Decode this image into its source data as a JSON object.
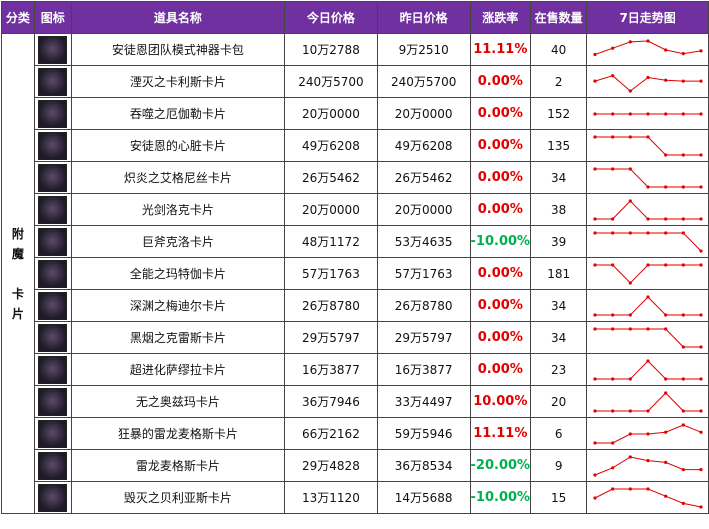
{
  "headers": [
    "分类",
    "图标",
    "道具名称",
    "今日价格",
    "昨日价格",
    "涨跌率",
    "在售数量",
    "7日走势图"
  ],
  "category": [
    "附",
    "魔",
    "",
    "卡",
    "片"
  ],
  "colors": {
    "header_bg": "#7030a0",
    "up": "#e00000",
    "down": "#00b050",
    "trend": "#e00000"
  },
  "rows": [
    {
      "icon": "item-card-icon",
      "name": "安徒恩团队模式神器卡包",
      "today": "10万2788",
      "yesterday": "9万2510",
      "rate": "11.11%",
      "dir": "up",
      "qty": "40",
      "trend": [
        0.25,
        0.6,
        0.95,
        1.0,
        0.5,
        0.3,
        0.45
      ]
    },
    {
      "icon": "item-card-icon",
      "name": "湮灭之卡利斯卡片",
      "today": "240万5700",
      "yesterday": "240万5700",
      "rate": "0.00%",
      "dir": "up",
      "qty": "2",
      "trend": [
        0.55,
        0.85,
        0.0,
        0.75,
        0.6,
        0.55,
        0.55
      ]
    },
    {
      "icon": "item-card-icon",
      "name": "吞噬之厄伽勒卡片",
      "today": "20万0000",
      "yesterday": "20万0000",
      "rate": "0.00%",
      "dir": "up",
      "qty": "152",
      "trend": [
        0.5,
        0.5,
        0.5,
        0.5,
        0.5,
        0.5,
        0.5
      ]
    },
    {
      "icon": "item-card-icon",
      "name": "安徒恩的心脏卡片",
      "today": "49万6208",
      "yesterday": "49万6208",
      "rate": "0.00%",
      "dir": "up",
      "qty": "135",
      "trend": [
        1.0,
        1.0,
        1.0,
        1.0,
        0.0,
        0.0,
        0.0
      ]
    },
    {
      "icon": "item-card-icon",
      "name": "炽炎之艾格尼丝卡片",
      "today": "26万5462",
      "yesterday": "26万5462",
      "rate": "0.00%",
      "dir": "up",
      "qty": "34",
      "trend": [
        1.0,
        1.0,
        1.0,
        0.0,
        0.0,
        0.0,
        0.0
      ]
    },
    {
      "icon": "item-card-icon",
      "name": "光剑洛克卡片",
      "today": "20万0000",
      "yesterday": "20万0000",
      "rate": "0.00%",
      "dir": "up",
      "qty": "38",
      "trend": [
        0.0,
        0.0,
        1.0,
        0.0,
        0.0,
        0.0,
        0.0
      ]
    },
    {
      "icon": "item-card-icon",
      "name": "巨斧克洛卡片",
      "today": "48万1172",
      "yesterday": "53万4635",
      "rate": "-10.00%",
      "dir": "down",
      "qty": "39",
      "trend": [
        1.0,
        1.0,
        1.0,
        1.0,
        1.0,
        1.0,
        0.0
      ]
    },
    {
      "icon": "item-card-icon",
      "name": "全能之玛特伽卡片",
      "today": "57万1763",
      "yesterday": "57万1763",
      "rate": "0.00%",
      "dir": "up",
      "qty": "181",
      "trend": [
        1.0,
        1.0,
        0.0,
        1.0,
        1.0,
        1.0,
        1.0
      ]
    },
    {
      "icon": "item-card-icon",
      "name": "深渊之梅迪尔卡片",
      "today": "26万8780",
      "yesterday": "26万8780",
      "rate": "0.00%",
      "dir": "up",
      "qty": "34",
      "trend": [
        0.0,
        0.0,
        0.0,
        1.0,
        0.0,
        0.0,
        0.0
      ]
    },
    {
      "icon": "item-card-icon",
      "name": "黑烟之克雷斯卡片",
      "today": "29万5797",
      "yesterday": "29万5797",
      "rate": "0.00%",
      "dir": "up",
      "qty": "34",
      "trend": [
        1.0,
        1.0,
        1.0,
        1.0,
        1.0,
        0.0,
        0.0
      ]
    },
    {
      "icon": "item-card-icon",
      "name": "超进化萨缪拉卡片",
      "today": "16万3877",
      "yesterday": "16万3877",
      "rate": "0.00%",
      "dir": "up",
      "qty": "23",
      "trend": [
        0.0,
        0.0,
        0.0,
        1.0,
        0.0,
        0.0,
        0.0
      ]
    },
    {
      "icon": "item-card-icon",
      "name": "无之奥兹玛卡片",
      "today": "36万7946",
      "yesterday": "33万4497",
      "rate": "10.00%",
      "dir": "up",
      "qty": "20",
      "trend": [
        0.0,
        0.0,
        0.0,
        0.0,
        1.0,
        0.0,
        0.0
      ]
    },
    {
      "icon": "item-card-icon",
      "name": "狂暴的雷龙麦格斯卡片",
      "today": "66万2162",
      "yesterday": "59万5946",
      "rate": "11.11%",
      "dir": "up",
      "qty": "6",
      "trend": [
        0.0,
        0.0,
        0.5,
        0.5,
        0.6,
        1.0,
        0.6
      ]
    },
    {
      "icon": "item-card-icon",
      "name": "雷龙麦格斯卡片",
      "today": "29万4828",
      "yesterday": "36万8534",
      "rate": "-20.00%",
      "dir": "down",
      "qty": "9",
      "trend": [
        0.0,
        0.4,
        1.0,
        0.8,
        0.7,
        0.3,
        0.3
      ]
    },
    {
      "icon": "item-card-icon",
      "name": "毁灭之贝利亚斯卡片",
      "today": "13万1120",
      "yesterday": "14万5688",
      "rate": "-10.00%",
      "dir": "down",
      "qty": "15",
      "trend": [
        0.5,
        1.0,
        1.0,
        1.0,
        0.6,
        0.2,
        0.0
      ]
    }
  ]
}
